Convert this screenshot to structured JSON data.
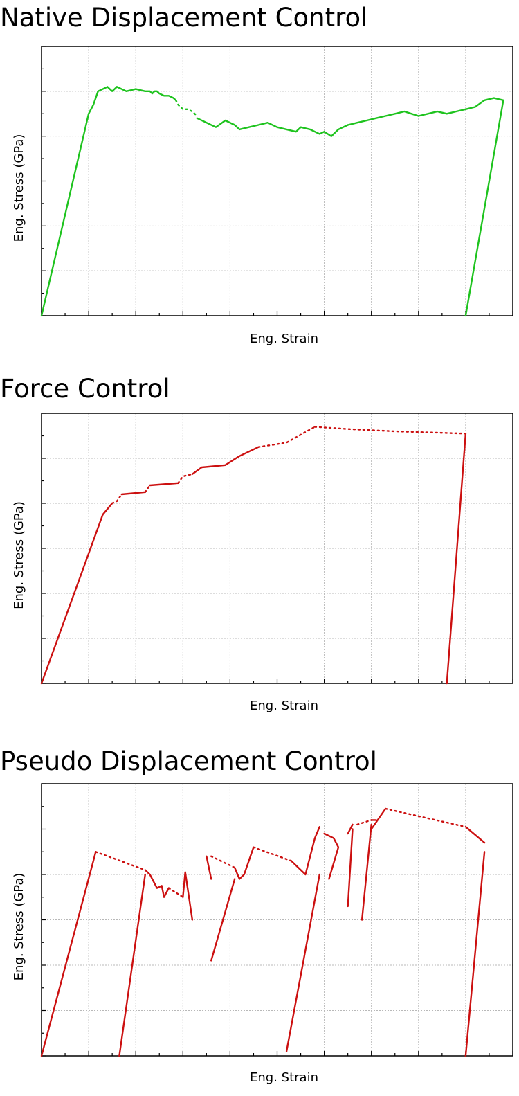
{
  "chart_data": [
    {
      "type": "line",
      "title": "Native Displacement Control",
      "xlabel": "Eng. Strain",
      "ylabel": "Eng. Stress (GPa)",
      "grid": true,
      "tick_labels": false,
      "xlim": [
        0,
        10
      ],
      "ylim": [
        0,
        6
      ],
      "color": "#1ec31e",
      "series": [
        {
          "style": "solid",
          "points": [
            [
              0,
              0
            ],
            [
              1.0,
              4.5
            ],
            [
              1.1,
              4.7
            ],
            [
              1.2,
              5.0
            ],
            [
              1.4,
              5.1
            ],
            [
              1.5,
              5.0
            ],
            [
              1.6,
              5.1
            ]
          ]
        },
        {
          "style": "solid",
          "points": [
            [
              1.6,
              5.1
            ],
            [
              1.8,
              5.0
            ],
            [
              2.0,
              5.05
            ],
            [
              2.2,
              5.0
            ],
            [
              2.3,
              5.0
            ],
            [
              2.35,
              4.95
            ],
            [
              2.4,
              5.0
            ],
            [
              2.45,
              5.0
            ],
            [
              2.5,
              4.95
            ],
            [
              2.6,
              4.9
            ],
            [
              2.7,
              4.9
            ],
            [
              2.8,
              4.85
            ],
            [
              2.85,
              4.8
            ]
          ]
        },
        {
          "style": "dotted",
          "points": [
            [
              2.85,
              4.8
            ],
            [
              2.9,
              4.7
            ],
            [
              3.0,
              4.6
            ],
            [
              3.1,
              4.6
            ],
            [
              3.2,
              4.55
            ],
            [
              3.3,
              4.45
            ]
          ]
        },
        {
          "style": "solid",
          "points": [
            [
              3.3,
              4.4
            ],
            [
              3.5,
              4.3
            ],
            [
              3.7,
              4.2
            ],
            [
              3.9,
              4.35
            ],
            [
              4.1,
              4.25
            ],
            [
              4.2,
              4.15
            ],
            [
              4.4,
              4.2
            ],
            [
              4.6,
              4.25
            ],
            [
              4.8,
              4.3
            ],
            [
              5.0,
              4.2
            ],
            [
              5.2,
              4.15
            ],
            [
              5.4,
              4.1
            ],
            [
              5.5,
              4.2
            ],
            [
              5.7,
              4.15
            ],
            [
              5.9,
              4.05
            ],
            [
              6.0,
              4.1
            ],
            [
              6.15,
              4.0
            ],
            [
              6.3,
              4.15
            ],
            [
              6.5,
              4.25
            ]
          ]
        },
        {
          "style": "solid",
          "points": [
            [
              6.5,
              4.25
            ],
            [
              6.7,
              4.3
            ],
            [
              6.9,
              4.35
            ],
            [
              7.1,
              4.4
            ],
            [
              7.3,
              4.45
            ],
            [
              7.5,
              4.5
            ],
            [
              7.7,
              4.55
            ],
            [
              7.85,
              4.5
            ],
            [
              8.0,
              4.45
            ],
            [
              8.2,
              4.5
            ],
            [
              8.4,
              4.55
            ],
            [
              8.6,
              4.5
            ],
            [
              8.8,
              4.55
            ],
            [
              9.0,
              4.6
            ],
            [
              9.2,
              4.65
            ],
            [
              9.4,
              4.8
            ],
            [
              9.6,
              4.85
            ],
            [
              9.8,
              4.8
            ],
            [
              9.0,
              0.0
            ]
          ]
        }
      ]
    },
    {
      "type": "line",
      "title": "Force Control",
      "xlabel": "Eng. Strain",
      "ylabel": "Eng. Stress (GPa)",
      "grid": true,
      "tick_labels": false,
      "xlim": [
        0,
        10
      ],
      "ylim": [
        0,
        6
      ],
      "color": "#cc1010",
      "series": [
        {
          "style": "solid",
          "points": [
            [
              0,
              0
            ],
            [
              1.3,
              3.75
            ],
            [
              1.5,
              4.0
            ]
          ]
        },
        {
          "style": "dotted",
          "points": [
            [
              1.5,
              4.0
            ],
            [
              1.6,
              4.05
            ],
            [
              1.7,
              4.2
            ]
          ]
        },
        {
          "style": "solid",
          "points": [
            [
              1.7,
              4.2
            ],
            [
              2.2,
              4.25
            ]
          ]
        },
        {
          "style": "dotted",
          "points": [
            [
              2.2,
              4.25
            ],
            [
              2.3,
              4.4
            ]
          ]
        },
        {
          "style": "solid",
          "points": [
            [
              2.3,
              4.4
            ],
            [
              2.9,
              4.45
            ]
          ]
        },
        {
          "style": "dotted",
          "points": [
            [
              2.9,
              4.45
            ],
            [
              3.0,
              4.6
            ],
            [
              3.2,
              4.65
            ]
          ]
        },
        {
          "style": "solid",
          "points": [
            [
              3.2,
              4.65
            ],
            [
              3.4,
              4.8
            ],
            [
              3.9,
              4.85
            ],
            [
              4.2,
              5.05
            ],
            [
              4.6,
              5.25
            ]
          ]
        },
        {
          "style": "dotted",
          "points": [
            [
              4.6,
              5.25
            ],
            [
              5.2,
              5.35
            ],
            [
              5.8,
              5.7
            ]
          ]
        },
        {
          "style": "dotted",
          "points": [
            [
              5.8,
              5.7
            ],
            [
              6.5,
              5.65
            ],
            [
              7.5,
              5.6
            ],
            [
              9.0,
              5.55
            ]
          ]
        },
        {
          "style": "solid",
          "points": [
            [
              9.0,
              5.55
            ],
            [
              8.6,
              0.0
            ]
          ]
        }
      ]
    },
    {
      "type": "line",
      "title": "Pseudo Displacement Control",
      "xlabel": "Eng. Strain",
      "ylabel": "Eng. Stress (GPa)",
      "grid": true,
      "tick_labels": false,
      "xlim": [
        0,
        10
      ],
      "ylim": [
        0,
        6
      ],
      "color": "#cc1010",
      "series": [
        {
          "style": "solid",
          "points": [
            [
              0,
              0
            ],
            [
              1.1,
              4.3
            ],
            [
              1.15,
              4.5
            ]
          ]
        },
        {
          "style": "dotted",
          "points": [
            [
              1.15,
              4.5
            ],
            [
              2.2,
              4.1
            ]
          ]
        },
        {
          "style": "solid",
          "points": [
            [
              2.2,
              4.1
            ],
            [
              2.3,
              4.0
            ],
            [
              2.45,
              3.7
            ],
            [
              2.55,
              3.75
            ],
            [
              2.6,
              3.5
            ],
            [
              2.7,
              3.7
            ]
          ]
        },
        {
          "style": "solid",
          "points": [
            [
              1.65,
              0
            ],
            [
              2.2,
              4.0
            ]
          ]
        },
        {
          "style": "dotted",
          "points": [
            [
              2.7,
              3.7
            ],
            [
              3.0,
              3.5
            ]
          ]
        },
        {
          "style": "solid",
          "points": [
            [
              3.0,
              3.5
            ],
            [
              3.05,
              4.05
            ],
            [
              3.2,
              3.0
            ]
          ]
        },
        {
          "style": "solid",
          "points": [
            [
              3.5,
              4.4
            ],
            [
              3.6,
              3.9
            ]
          ]
        },
        {
          "style": "dotted",
          "points": [
            [
              3.6,
              4.4
            ],
            [
              4.1,
              4.15
            ]
          ]
        },
        {
          "style": "solid",
          "points": [
            [
              4.1,
              4.15
            ],
            [
              4.2,
              3.9
            ],
            [
              4.3,
              4.0
            ],
            [
              4.5,
              4.6
            ]
          ]
        },
        {
          "style": "solid",
          "points": [
            [
              3.6,
              2.1
            ],
            [
              4.1,
              3.9
            ]
          ]
        },
        {
          "style": "dotted",
          "points": [
            [
              4.5,
              4.6
            ],
            [
              5.3,
              4.3
            ]
          ]
        },
        {
          "style": "solid",
          "points": [
            [
              5.3,
              4.3
            ],
            [
              5.6,
              4.0
            ],
            [
              5.8,
              4.8
            ],
            [
              5.9,
              5.05
            ]
          ]
        },
        {
          "style": "solid",
          "points": [
            [
              5.2,
              0.1
            ],
            [
              5.9,
              4.0
            ]
          ]
        },
        {
          "style": "solid",
          "points": [
            [
              6.0,
              4.9
            ],
            [
              6.2,
              4.8
            ],
            [
              6.3,
              4.6
            ],
            [
              6.1,
              3.9
            ]
          ]
        },
        {
          "style": "solid",
          "points": [
            [
              6.5,
              4.9
            ],
            [
              6.6,
              5.1
            ]
          ]
        },
        {
          "style": "solid",
          "points": [
            [
              6.5,
              3.3
            ],
            [
              6.6,
              5.0
            ]
          ]
        },
        {
          "style": "dotted",
          "points": [
            [
              6.7,
              5.1
            ],
            [
              7.0,
              5.2
            ]
          ]
        },
        {
          "style": "solid",
          "points": [
            [
              7.0,
              5.2
            ],
            [
              7.1,
              5.2
            ]
          ]
        },
        {
          "style": "solid",
          "points": [
            [
              6.8,
              3.0
            ],
            [
              7.0,
              5.1
            ]
          ]
        },
        {
          "style": "solid",
          "points": [
            [
              7.0,
              5.0
            ],
            [
              7.3,
              5.45
            ]
          ]
        },
        {
          "style": "dotted",
          "points": [
            [
              7.3,
              5.45
            ],
            [
              9.0,
              5.05
            ]
          ]
        },
        {
          "style": "solid",
          "points": [
            [
              9.0,
              5.05
            ],
            [
              9.4,
              4.7
            ]
          ]
        },
        {
          "style": "solid",
          "points": [
            [
              9.0,
              0
            ],
            [
              9.4,
              4.5
            ]
          ]
        }
      ]
    }
  ]
}
